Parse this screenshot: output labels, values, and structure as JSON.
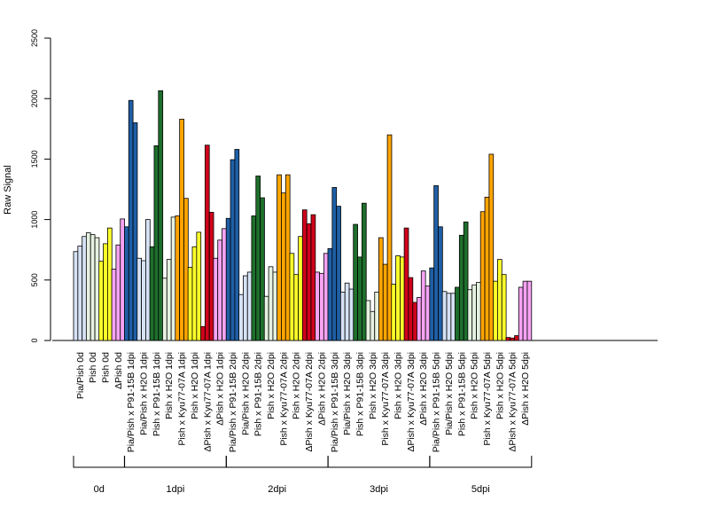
{
  "chart_data": {
    "type": "bar",
    "title": "",
    "xlabel": "",
    "ylabel": "Raw Signal",
    "ylim": [
      0,
      2500
    ],
    "yticks": [
      0,
      500,
      1000,
      1500,
      2000,
      2500
    ],
    "grid": false,
    "legend": "none",
    "palette": {
      "Pia/Pish": "#d6e2f5",
      "Pish": "#e6f2e0",
      "Pish_yellow": "#ffff2a",
      "ΔPish": "#f6a3f3",
      "P91-15B": "#1f5fa6",
      "H2O_green": "#e6f2e0",
      "P91-15B_green": "#1e6f2c",
      "Kyu77-07A_orange": "#ffa500",
      "Kyu77-07A_red": "#d0021b"
    },
    "categories": [
      {
        "label": "Pia/Pish 0d",
        "color": "#d6e2f5",
        "values": [
          735,
          780,
          860
        ]
      },
      {
        "label": "Pish 0d",
        "color": "#e6f2e0",
        "values": [
          890,
          875,
          850
        ]
      },
      {
        "label": "Pish 0d",
        "color": "#ffff2a",
        "values": [
          655,
          800,
          930
        ]
      },
      {
        "label": "ΔPish 0d",
        "color": "#f6a3f3",
        "values": [
          590,
          790,
          1005
        ]
      },
      {
        "label": "Pia/Pish x P91-15B 1dpi",
        "color": "#1f5fa6",
        "values": [
          940,
          1985,
          1800
        ]
      },
      {
        "label": "Pia/Pish x H2O 1dpi",
        "color": "#d6e2f5",
        "values": [
          680,
          660,
          1000
        ]
      },
      {
        "label": "Pish x P91-15B 1dpi",
        "color": "#1e6f2c",
        "values": [
          775,
          1610,
          2065
        ]
      },
      {
        "label": "Pish x H2O 1dpi",
        "color": "#e6f2e0",
        "values": [
          515,
          670,
          1020
        ]
      },
      {
        "label": "Pish x Kyu77-07A 1dpi",
        "color": "#ffa500",
        "values": [
          1030,
          1830,
          1175
        ]
      },
      {
        "label": "Pish x H2O 1dpi",
        "color": "#ffff2a",
        "values": [
          605,
          775,
          895
        ]
      },
      {
        "label": "ΔPish x Kyu77-07A 1dpi",
        "color": "#d0021b",
        "values": [
          115,
          1615,
          1060
        ]
      },
      {
        "label": "ΔPish x H2O 1dpi",
        "color": "#f6a3f3",
        "values": [
          680,
          830,
          925
        ]
      },
      {
        "label": "Pia/Pish x P91-15B 2dpi",
        "color": "#1f5fa6",
        "values": [
          1010,
          1495,
          1580
        ]
      },
      {
        "label": "Pia/Pish x H2O 2dpi",
        "color": "#d6e2f5",
        "values": [
          380,
          535,
          565
        ]
      },
      {
        "label": "Pish x P91-15B 2dpi",
        "color": "#1e6f2c",
        "values": [
          1030,
          1360,
          1180
        ]
      },
      {
        "label": "Pish x H2O 2dpi",
        "color": "#e6f2e0",
        "values": [
          365,
          610,
          565
        ]
      },
      {
        "label": "Pish x Kyu77-07A 2dpi",
        "color": "#ffa500",
        "values": [
          1370,
          1220,
          1370
        ]
      },
      {
        "label": "Pish x H2O 2dpi",
        "color": "#ffff2a",
        "values": [
          720,
          545,
          860
        ]
      },
      {
        "label": "ΔPish x Kyu77-07A 2dpi",
        "color": "#d0021b",
        "values": [
          1080,
          965,
          1040
        ]
      },
      {
        "label": "ΔPish x H2O 2dpi",
        "color": "#f6a3f3",
        "values": [
          565,
          555,
          720
        ]
      },
      {
        "label": "Pia/Pish x P91-15B 3dpi",
        "color": "#1f5fa6",
        "values": [
          760,
          1265,
          1110
        ]
      },
      {
        "label": "Pia/Pish x H2O 3dpi",
        "color": "#d6e2f5",
        "values": [
          400,
          475,
          425
        ]
      },
      {
        "label": "Pish x P91-15B 3dpi",
        "color": "#1e6f2c",
        "values": [
          960,
          690,
          1135
        ]
      },
      {
        "label": "Pish x H2O 3dpi",
        "color": "#e6f2e0",
        "values": [
          330,
          240,
          400
        ]
      },
      {
        "label": "Pish x Kyu77-07A 3dpi",
        "color": "#ffa500",
        "values": [
          850,
          630,
          1700
        ]
      },
      {
        "label": "Pish x H2O 3dpi",
        "color": "#ffff2a",
        "values": [
          465,
          700,
          690
        ]
      },
      {
        "label": "ΔPish x Kyu77-07A 3dpi",
        "color": "#d0021b",
        "values": [
          930,
          520,
          315
        ]
      },
      {
        "label": "ΔPish x H2O 3dpi",
        "color": "#f6a3f3",
        "values": [
          355,
          575,
          450
        ]
      },
      {
        "label": "Pia/Pish x P91-15B 5dpi",
        "color": "#1f5fa6",
        "values": [
          600,
          1280,
          940
        ]
      },
      {
        "label": "Pia/Pish x H2O 5dpi",
        "color": "#d6e2f5",
        "values": [
          405,
          390,
          390
        ]
      },
      {
        "label": "Pish x P91-15B 5dpi",
        "color": "#1e6f2c",
        "values": [
          440,
          870,
          980
        ]
      },
      {
        "label": "Pish x H2O 5dpi",
        "color": "#e6f2e0",
        "values": [
          420,
          460,
          480
        ]
      },
      {
        "label": "Pish x Kyu77-07A 5dpi",
        "color": "#ffa500",
        "values": [
          1065,
          1185,
          1540
        ]
      },
      {
        "label": "Pish x H2O 5dpi",
        "color": "#ffff2a",
        "values": [
          490,
          670,
          545
        ]
      },
      {
        "label": "ΔPish x Kyu77-07A 5dpi",
        "color": "#d0021b",
        "values": [
          25,
          20,
          40
        ]
      },
      {
        "label": "ΔPish x H2O 5dpi",
        "color": "#f6a3f3",
        "values": [
          440,
          490,
          490
        ]
      }
    ],
    "groups": [
      {
        "label": "0d",
        "start": 0,
        "end": 3
      },
      {
        "label": "1dpi",
        "start": 4,
        "end": 11
      },
      {
        "label": "2dpi",
        "start": 12,
        "end": 19
      },
      {
        "label": "3dpi",
        "start": 20,
        "end": 27
      },
      {
        "label": "5dpi",
        "start": 28,
        "end": 35
      }
    ]
  }
}
